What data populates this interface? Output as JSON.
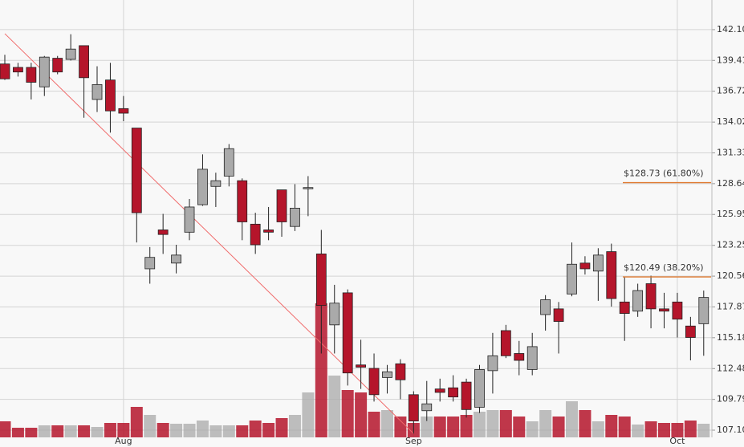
{
  "chart_data": {
    "type": "candlestick",
    "categories": [
      null,
      null,
      null,
      null,
      null,
      null,
      null,
      null,
      null,
      "Aug",
      null,
      null,
      null,
      null,
      null,
      null,
      null,
      null,
      null,
      null,
      null,
      null,
      null,
      null,
      null,
      null,
      null,
      null,
      null,
      null,
      null,
      "Sep",
      null,
      null,
      null,
      null,
      null,
      null,
      null,
      null,
      null,
      null,
      null,
      null,
      null,
      null,
      null,
      null,
      null,
      null,
      null,
      "Oct",
      null,
      null
    ],
    "open": [
      139.1,
      138.8,
      138.8,
      137.1,
      139.6,
      139.5,
      140.7,
      136.0,
      137.7,
      135.2,
      133.5,
      121.2,
      124.6,
      121.7,
      124.4,
      126.8,
      128.4,
      129.3,
      128.9,
      125.1,
      124.6,
      128.1,
      124.9,
      128.2,
      122.5,
      116.3,
      119.1,
      112.8,
      112.5,
      111.7,
      112.9,
      110.2,
      108.8,
      110.7,
      110.8,
      111.3,
      109.1,
      112.3,
      115.8,
      113.8,
      112.4,
      117.2,
      117.7,
      119.0,
      121.7,
      121.0,
      122.7,
      118.3,
      117.5,
      119.9,
      117.7,
      118.3,
      116.2,
      116.4
    ],
    "high": [
      139.9,
      139.2,
      139.2,
      139.8,
      139.8,
      141.7,
      140.7,
      138.9,
      139.2,
      136.3,
      133.5,
      123.1,
      126.0,
      123.3,
      127.3,
      131.2,
      129.6,
      132.1,
      129.1,
      126.1,
      126.6,
      128.1,
      128.6,
      129.3,
      124.6,
      119.8,
      119.4,
      115.0,
      113.8,
      112.8,
      113.3,
      110.5,
      111.4,
      111.6,
      111.9,
      111.6,
      112.8,
      115.6,
      116.3,
      114.9,
      115.6,
      118.9,
      118.3,
      123.5,
      122.3,
      123.0,
      123.4,
      120.5,
      119.9,
      120.6,
      119.1,
      119.1,
      117.0,
      119.3
    ],
    "low": [
      137.7,
      138.0,
      136.0,
      136.3,
      138.2,
      139.4,
      134.4,
      134.9,
      133.1,
      134.1,
      123.5,
      119.9,
      122.5,
      120.8,
      123.7,
      126.7,
      126.6,
      128.4,
      123.7,
      122.5,
      123.7,
      124.0,
      124.5,
      125.8,
      113.8,
      113.8,
      111.0,
      110.7,
      109.6,
      110.3,
      109.8,
      106.8,
      107.9,
      109.6,
      109.6,
      108.2,
      108.6,
      110.3,
      113.4,
      111.9,
      111.9,
      115.8,
      113.8,
      118.8,
      120.7,
      118.4,
      117.9,
      114.9,
      117.0,
      116.0,
      116.0,
      115.2,
      113.2,
      113.6
    ],
    "close": [
      137.8,
      138.4,
      137.5,
      139.7,
      138.4,
      140.4,
      137.9,
      137.3,
      135.0,
      134.8,
      126.1,
      122.2,
      124.2,
      122.4,
      126.6,
      129.9,
      128.9,
      131.7,
      125.3,
      123.3,
      124.4,
      125.3,
      126.5,
      128.3,
      118.0,
      118.2,
      112.1,
      112.6,
      110.2,
      112.2,
      111.5,
      107.9,
      109.4,
      110.4,
      110.0,
      108.9,
      112.4,
      113.6,
      113.6,
      113.2,
      114.4,
      118.5,
      116.6,
      121.6,
      121.2,
      122.4,
      118.6,
      117.3,
      119.3,
      117.7,
      117.5,
      116.8,
      115.2,
      118.7
    ],
    "volume": [
      20,
      12,
      12,
      15,
      15,
      15,
      15,
      13,
      18,
      18,
      38,
      28,
      18,
      17,
      17,
      21,
      15,
      15,
      15,
      21,
      18,
      24,
      28,
      56,
      167,
      77,
      59,
      56,
      32,
      34,
      26,
      18,
      26,
      26,
      26,
      28,
      32,
      34,
      34,
      26,
      20,
      34,
      26,
      45,
      34,
      20,
      28,
      26,
      16,
      20,
      18,
      18,
      21,
      17
    ],
    "up_color": "#aaaaaa",
    "down_color": "#b5152b",
    "ylim": [
      106.47,
      144.69
    ],
    "yticks": [
      {
        "value": 142.1,
        "label": "142.10"
      },
      139.41,
      136.72,
      134.02,
      131.33,
      128.64,
      125.95,
      123.25,
      {
        "value": 120.56,
        "label": "120.56"
      },
      117.87,
      115.18,
      112.48,
      109.79,
      {
        "value": 107.1,
        "label": "107.10"
      }
    ],
    "grid": true,
    "trendline": {
      "high": 141.75,
      "low": 106.8,
      "color": "#f06a6a"
    },
    "levels": [
      {
        "value": 128.73,
        "label": "$128.73 (61.80%)",
        "color": "#e07a30"
      },
      {
        "value": 120.49,
        "label": "$120.49 (38.20%)",
        "color": "#e07a30"
      }
    ]
  }
}
